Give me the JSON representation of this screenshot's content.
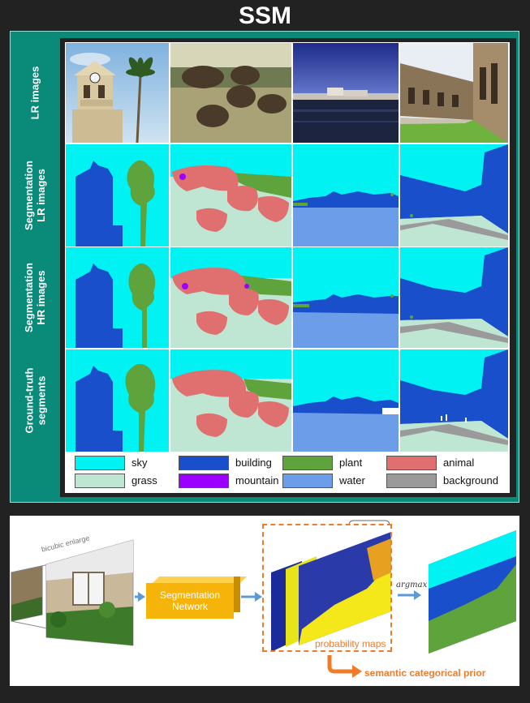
{
  "title": "SSM",
  "row_labels": [
    "LR images",
    "Segmentation\nLR images",
    "Segmentation\nHR images",
    "Ground-truth\nsegments"
  ],
  "legend": [
    {
      "label": "sky",
      "color": "#00f2f2"
    },
    {
      "label": "building",
      "color": "#1a4fcc"
    },
    {
      "label": "plant",
      "color": "#5ea33c"
    },
    {
      "label": "animal",
      "color": "#e07070"
    },
    {
      "label": "grass",
      "color": "#bfe6d2"
    },
    {
      "label": "mountain",
      "color": "#9b00ff"
    },
    {
      "label": "water",
      "color": "#6b9de8"
    },
    {
      "label": "background",
      "color": "#9a9a9a"
    }
  ],
  "pipeline": {
    "bicubic_label": "bicubic enlarge",
    "network_label": "Segmentation\nNetwork",
    "argmax_label": "argmax",
    "prob_maps_label": "probability maps",
    "prior_label": "semantic categorical prior"
  },
  "colors": {
    "panel": "#0a8a79",
    "arrow": "#5b9bd5",
    "orange": "#f07b2a",
    "network": "#f6b40a"
  }
}
